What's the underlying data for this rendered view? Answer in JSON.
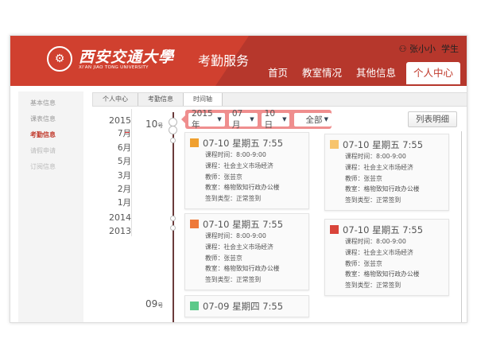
{
  "header": {
    "logo_text": "西安交通大學",
    "logo_en": "XI'AN JIAO TONG UNIVERSITY",
    "service": "考勤服务",
    "user": "张小小",
    "role": "学生",
    "nav": [
      "首页",
      "教室情况",
      "其他信息",
      "个人中心"
    ],
    "active_nav": "个人中心"
  },
  "sidebar": {
    "items": [
      "基本信息",
      "课表信息",
      "考勤信息",
      "请假申请",
      "订阅信息"
    ],
    "active": "考勤信息"
  },
  "breadcrumb": [
    "个人中心",
    "考勤信息",
    "时间轴"
  ],
  "years": [
    "2015",
    "7月",
    "6月",
    "5月",
    "3月",
    "2月",
    "1月",
    "2014",
    "2013"
  ],
  "days": [
    {
      "num": "10",
      "suffix": "号"
    },
    {
      "num": "09",
      "suffix": "号"
    }
  ],
  "filter": {
    "year": "2015年",
    "month": "07月",
    "day": "10日",
    "type": "全部"
  },
  "list_button": "列表明细",
  "card_labels": {
    "time": "课程时间：",
    "course": "课程：",
    "teacher": "教师：",
    "room": "教室：",
    "type": "签到类型："
  },
  "cards": [
    {
      "title": "07-10 星期五 7:55",
      "time": "8:00-9:00",
      "course": "社会主义市场经济",
      "teacher": "张芸京",
      "room": "格物致知行政办公楼",
      "type": "正常签到",
      "color": "#f0a030"
    },
    {
      "title": "07-10 星期五 7:55",
      "time": "8:00-9:00",
      "course": "社会主义市场经济",
      "teacher": "张芸京",
      "room": "格物致知行政办公楼",
      "type": "正常签到",
      "color": "#f7c46c"
    },
    {
      "title": "07-10 星期五 7:55",
      "time": "8:00-9:00",
      "course": "社会主义市场经济",
      "teacher": "张芸京",
      "room": "格物致知行政办公楼",
      "type": "正常签到",
      "color": "#ee7a3a"
    },
    {
      "title": "07-10 星期五 7:55",
      "time": "8:00-9:00",
      "course": "社会主义市场经济",
      "teacher": "张芸京",
      "room": "格物致知行政办公楼",
      "type": "正常签到",
      "color": "#d9443a"
    },
    {
      "title": "07-09 星期四 7:55",
      "color": "#5cc98a"
    }
  ]
}
